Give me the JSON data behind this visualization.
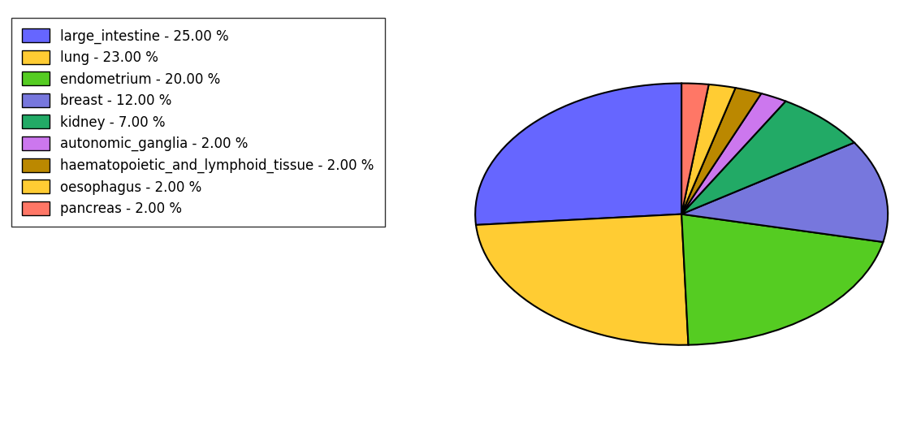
{
  "labels": [
    "large_intestine",
    "lung",
    "endometrium",
    "breast",
    "kidney",
    "autonomic_ganglia",
    "haematopoietic_and_lymphoid_tissue",
    "oesophagus",
    "pancreas"
  ],
  "values": [
    25.0,
    23.0,
    20.0,
    12.0,
    7.0,
    2.0,
    2.0,
    2.0,
    2.0
  ],
  "colors": [
    "#6666ff",
    "#ffcc33",
    "#55cc22",
    "#7777dd",
    "#22aa66",
    "#cc77ee",
    "#bb8800",
    "#ffcc33",
    "#ff7766"
  ],
  "legend_labels": [
    "large_intestine - 25.00 %",
    "lung - 23.00 %",
    "endometrium - 20.00 %",
    "breast - 12.00 %",
    "kidney - 7.00 %",
    "autonomic_ganglia - 2.00 %",
    "haematopoietic_and_lymphoid_tissue - 2.00 %",
    "oesophagus - 2.00 %",
    "pancreas - 2.00 %"
  ],
  "startangle": 90,
  "figsize": [
    11.34,
    5.38
  ],
  "dpi": 100,
  "legend_fontsize": 12,
  "background_color": "#ffffff"
}
